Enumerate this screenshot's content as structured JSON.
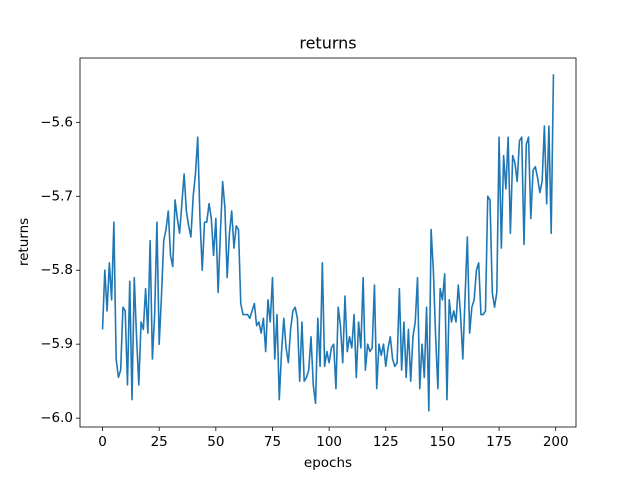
{
  "chart_data": {
    "type": "line",
    "title": "returns",
    "xlabel": "epochs",
    "ylabel": "returns",
    "x": [
      0,
      1,
      2,
      3,
      4,
      5,
      6,
      7,
      8,
      9,
      10,
      11,
      12,
      13,
      14,
      15,
      16,
      17,
      18,
      19,
      20,
      21,
      22,
      23,
      24,
      25,
      26,
      27,
      28,
      29,
      30,
      31,
      32,
      33,
      34,
      35,
      36,
      37,
      38,
      39,
      40,
      41,
      42,
      43,
      44,
      45,
      46,
      47,
      48,
      49,
      50,
      51,
      52,
      53,
      54,
      55,
      56,
      57,
      58,
      59,
      60,
      61,
      62,
      63,
      64,
      65,
      66,
      67,
      68,
      69,
      70,
      71,
      72,
      73,
      74,
      75,
      76,
      77,
      78,
      79,
      80,
      81,
      82,
      83,
      84,
      85,
      86,
      87,
      88,
      89,
      90,
      91,
      92,
      93,
      94,
      95,
      96,
      97,
      98,
      99,
      100,
      101,
      102,
      103,
      104,
      105,
      106,
      107,
      108,
      109,
      110,
      111,
      112,
      113,
      114,
      115,
      116,
      117,
      118,
      119,
      120,
      121,
      122,
      123,
      124,
      125,
      126,
      127,
      128,
      129,
      130,
      131,
      132,
      133,
      134,
      135,
      136,
      137,
      138,
      139,
      140,
      141,
      142,
      143,
      144,
      145,
      146,
      147,
      148,
      149,
      150,
      151,
      152,
      153,
      154,
      155,
      156,
      157,
      158,
      159,
      160,
      161,
      162,
      163,
      164,
      165,
      166,
      167,
      168,
      169,
      170,
      171,
      172,
      173,
      174,
      175,
      176,
      177,
      178,
      179,
      180,
      181,
      182,
      183,
      184,
      185,
      186,
      187,
      188,
      189,
      190,
      191,
      192,
      193,
      194,
      195,
      196,
      197,
      198,
      199
    ],
    "series": [
      {
        "name": "returns",
        "color": "#1f77b4",
        "values": [
          -5.88,
          -5.8,
          -5.855,
          -5.79,
          -5.84,
          -5.735,
          -5.92,
          -5.945,
          -5.935,
          -5.85,
          -5.855,
          -5.955,
          -5.815,
          -5.975,
          -5.81,
          -5.89,
          -5.955,
          -5.87,
          -5.88,
          -5.825,
          -5.885,
          -5.76,
          -5.92,
          -5.86,
          -5.735,
          -5.9,
          -5.835,
          -5.76,
          -5.745,
          -5.72,
          -5.78,
          -5.795,
          -5.705,
          -5.73,
          -5.75,
          -5.71,
          -5.67,
          -5.72,
          -5.74,
          -5.755,
          -5.7,
          -5.67,
          -5.62,
          -5.73,
          -5.8,
          -5.735,
          -5.735,
          -5.71,
          -5.73,
          -5.78,
          -5.73,
          -5.83,
          -5.75,
          -5.68,
          -5.715,
          -5.81,
          -5.75,
          -5.72,
          -5.77,
          -5.74,
          -5.745,
          -5.845,
          -5.86,
          -5.86,
          -5.86,
          -5.865,
          -5.855,
          -5.845,
          -5.875,
          -5.87,
          -5.885,
          -5.865,
          -5.91,
          -5.84,
          -5.87,
          -5.81,
          -5.92,
          -5.86,
          -5.975,
          -5.91,
          -5.865,
          -5.905,
          -5.925,
          -5.88,
          -5.855,
          -5.85,
          -5.865,
          -5.95,
          -5.87,
          -5.95,
          -5.945,
          -5.935,
          -5.89,
          -5.955,
          -5.98,
          -5.865,
          -5.93,
          -5.79,
          -5.93,
          -5.91,
          -5.925,
          -5.905,
          -5.9,
          -5.96,
          -5.85,
          -5.875,
          -5.925,
          -5.835,
          -5.91,
          -5.89,
          -5.905,
          -5.86,
          -5.945,
          -5.87,
          -5.905,
          -5.81,
          -5.935,
          -5.9,
          -5.91,
          -5.905,
          -5.82,
          -5.96,
          -5.9,
          -5.915,
          -5.9,
          -5.93,
          -5.905,
          -5.89,
          -5.92,
          -5.93,
          -5.925,
          -5.825,
          -5.935,
          -5.87,
          -5.945,
          -5.88,
          -5.95,
          -5.89,
          -5.87,
          -5.81,
          -5.96,
          -5.9,
          -5.945,
          -5.85,
          -5.99,
          -5.745,
          -5.8,
          -5.89,
          -5.96,
          -5.825,
          -5.84,
          -5.805,
          -5.975,
          -5.84,
          -5.87,
          -5.855,
          -5.87,
          -5.82,
          -5.86,
          -5.92,
          -5.835,
          -5.755,
          -5.885,
          -5.85,
          -5.84,
          -5.8,
          -5.79,
          -5.86,
          -5.86,
          -5.855,
          -5.7,
          -5.705,
          -5.83,
          -5.85,
          -5.83,
          -5.62,
          -5.77,
          -5.645,
          -5.69,
          -5.62,
          -5.75,
          -5.645,
          -5.655,
          -5.68,
          -5.625,
          -5.62,
          -5.765,
          -5.63,
          -5.62,
          -5.73,
          -5.665,
          -5.66,
          -5.675,
          -5.695,
          -5.68,
          -5.605,
          -5.71,
          -5.605,
          -5.75,
          -5.535
        ]
      }
    ],
    "xlim": [
      -9.95,
      208.95
    ],
    "xticks": [
      0,
      25,
      50,
      75,
      100,
      125,
      150,
      175,
      200
    ],
    "ylim": [
      -6.012,
      -5.513
    ],
    "yticks": [
      {
        "value": -6.0,
        "label": "−6.0"
      },
      {
        "value": -5.9,
        "label": "−5.9"
      },
      {
        "value": -5.8,
        "label": "−5.8"
      },
      {
        "value": -5.7,
        "label": "−5.7"
      },
      {
        "value": -5.6,
        "label": "−5.6"
      }
    ],
    "grid": false
  }
}
